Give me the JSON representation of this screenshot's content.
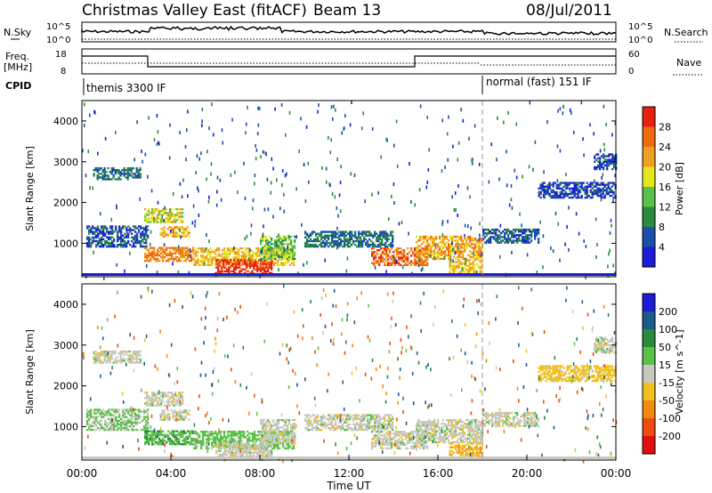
{
  "header": {
    "title": "Christmas Valley East (fitACF)",
    "beam": "Beam 13",
    "date": "08/Jul/2011"
  },
  "panel_labels": {
    "nsky": "N.Sky",
    "nsearch": "N.Search",
    "freq_line1": "Freq.",
    "freq_line2": "[MHz]",
    "nave": "Nave",
    "cpid": "CPID"
  },
  "noise_axis": {
    "top": "10^5",
    "bottom": "10^0",
    "right_top": "10^5",
    "right_bottom": "10^0"
  },
  "freq_axis": {
    "ticks": [
      "18",
      "8"
    ],
    "nave_ticks": [
      "60",
      "0"
    ]
  },
  "cpid": [
    {
      "label": "themis 3300 IF",
      "start_hour": 0
    },
    {
      "label": "normal (fast) 151 IF",
      "start_hour": 18
    }
  ],
  "chart_data": [
    {
      "type": "heatmap",
      "name_panel": "power",
      "ylabel": "Slant Range [km]",
      "yticks": [
        "1000",
        "2000",
        "3000",
        "4000"
      ],
      "ylim": [
        180,
        4500
      ],
      "colorbar_label": "Power [dB]",
      "colorbar_ticks": [
        "4",
        "8",
        "12",
        "16",
        "20",
        "24",
        "28"
      ],
      "colorbar_colors": [
        "#1c1cd6",
        "#1c4fa8",
        "#2a8a3e",
        "#5cc14a",
        "#e6e61e",
        "#f0a020",
        "#f06a10",
        "#e82010"
      ],
      "colorbar_range": [
        0,
        32
      ],
      "regions": [
        {
          "t0": 0.5,
          "t1": 2.6,
          "r0": 2550,
          "r1": 2850,
          "level": 8
        },
        {
          "t0": 0.2,
          "t1": 3.0,
          "r0": 900,
          "r1": 1400,
          "level": 6
        },
        {
          "t0": 2.8,
          "t1": 4.5,
          "r0": 1500,
          "r1": 1850,
          "level": 18
        },
        {
          "t0": 3.5,
          "t1": 4.8,
          "r0": 1150,
          "r1": 1400,
          "level": 22
        },
        {
          "t0": 2.8,
          "t1": 5.0,
          "r0": 550,
          "r1": 900,
          "level": 24
        },
        {
          "t0": 5.0,
          "t1": 9.5,
          "r0": 450,
          "r1": 900,
          "level": 20
        },
        {
          "t0": 6.0,
          "t1": 8.5,
          "r0": 250,
          "r1": 600,
          "level": 29
        },
        {
          "t0": 8.0,
          "t1": 9.6,
          "r0": 600,
          "r1": 1150,
          "level": 14
        },
        {
          "t0": 10.0,
          "t1": 14.0,
          "r0": 900,
          "r1": 1300,
          "level": 8
        },
        {
          "t0": 13.0,
          "t1": 15.5,
          "r0": 450,
          "r1": 900,
          "level": 26
        },
        {
          "t0": 15.0,
          "t1": 18.0,
          "r0": 600,
          "r1": 1150,
          "level": 22
        },
        {
          "t0": 16.5,
          "t1": 18.0,
          "r0": 250,
          "r1": 600,
          "level": 20
        },
        {
          "t0": 18.0,
          "t1": 20.5,
          "r0": 1000,
          "r1": 1350,
          "level": 6
        },
        {
          "t0": 20.5,
          "t1": 24.0,
          "r0": 2100,
          "r1": 2500,
          "level": 5
        },
        {
          "t0": 23.0,
          "t1": 24.0,
          "r0": 2800,
          "r1": 3200,
          "level": 5
        }
      ],
      "data_gap": [
        {
          "t0": 0.0,
          "t1": 0.2
        },
        {
          "t0": 19.2,
          "t1": 19.4
        }
      ]
    },
    {
      "type": "heatmap",
      "name_panel": "velocity",
      "ylabel": "Slant Range [km]",
      "yticks": [
        "1000",
        "2000",
        "3000",
        "4000"
      ],
      "ylim": [
        180,
        4500
      ],
      "colorbar_label": "Velocity [m s^-1]",
      "colorbar_ticks": [
        "200",
        "100",
        "50",
        "15",
        "-15",
        "-50",
        "-100",
        "-200"
      ],
      "colorbar_colors": [
        "#1c1cd6",
        "#1c5a8c",
        "#2a8a3e",
        "#5cc14a",
        "#c8c8c0",
        "#f0c020",
        "#f08a10",
        "#f04a10",
        "#e01010"
      ],
      "regions": [
        {
          "t0": 0.5,
          "t1": 2.6,
          "r0": 2550,
          "r1": 2850,
          "vel": 0
        },
        {
          "t0": 0.2,
          "t1": 3.0,
          "r0": 900,
          "r1": 1400,
          "vel": 20
        },
        {
          "t0": 2.8,
          "t1": 4.5,
          "r0": 1500,
          "r1": 1850,
          "vel": 0
        },
        {
          "t0": 3.5,
          "t1": 4.8,
          "r0": 1150,
          "r1": 1400,
          "vel": 0
        },
        {
          "t0": 2.8,
          "t1": 5.0,
          "r0": 550,
          "r1": 900,
          "vel": 40
        },
        {
          "t0": 5.0,
          "t1": 9.5,
          "r0": 450,
          "r1": 900,
          "vel": 30
        },
        {
          "t0": 6.0,
          "t1": 8.5,
          "r0": 250,
          "r1": 600,
          "vel": 0
        },
        {
          "t0": 8.0,
          "t1": 9.6,
          "r0": 600,
          "r1": 1150,
          "vel": 0
        },
        {
          "t0": 10.0,
          "t1": 14.0,
          "r0": 900,
          "r1": 1300,
          "vel": 0
        },
        {
          "t0": 13.0,
          "t1": 15.5,
          "r0": 450,
          "r1": 900,
          "vel": 0
        },
        {
          "t0": 15.0,
          "t1": 18.0,
          "r0": 600,
          "r1": 1150,
          "vel": 0
        },
        {
          "t0": 16.5,
          "t1": 18.0,
          "r0": 250,
          "r1": 600,
          "vel": -40
        },
        {
          "t0": 18.0,
          "t1": 20.5,
          "r0": 1000,
          "r1": 1350,
          "vel": 0
        },
        {
          "t0": 20.5,
          "t1": 24.0,
          "r0": 2100,
          "r1": 2500,
          "vel": -30
        },
        {
          "t0": 23.0,
          "t1": 24.0,
          "r0": 2800,
          "r1": 3200,
          "vel": 0
        }
      ]
    }
  ],
  "time_axis": {
    "label": "Time UT",
    "ticks": [
      "00:00",
      "04:00",
      "08:00",
      "12:00",
      "16:00",
      "20:00",
      "00:00"
    ],
    "range_hours": [
      0,
      24
    ]
  }
}
